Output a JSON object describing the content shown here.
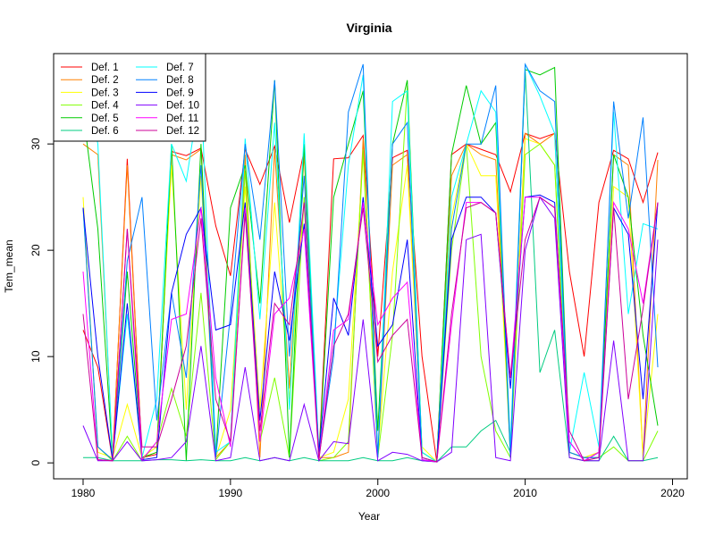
{
  "chart_data": {
    "type": "line",
    "title": "Virginia",
    "xlabel": "Year",
    "ylabel": "Tem_mean",
    "xlim": [
      1978,
      2021
    ],
    "ylim": [
      -1.5,
      38.5
    ],
    "xticks": [
      1980,
      1990,
      2000,
      2010,
      2020
    ],
    "yticks": [
      0,
      10,
      20,
      30
    ],
    "grid": false,
    "legend_position": "top-left",
    "x": [
      1980,
      1981,
      1982,
      1983,
      1984,
      1985,
      1986,
      1987,
      1988,
      1989,
      1990,
      1991,
      1992,
      1993,
      1994,
      1995,
      1996,
      1997,
      1998,
      1999,
      2000,
      2001,
      2002,
      2003,
      2004,
      2005,
      2006,
      2007,
      2008,
      2009,
      2010,
      2011,
      2012,
      2013,
      2014,
      2015,
      2016,
      2017,
      2018,
      2019
    ],
    "series": [
      {
        "name": "Def. 1",
        "color": "#FF0000",
        "values": [
          12.5,
          9.0,
          0.2,
          28.6,
          0.5,
          0.8,
          29.3,
          28.9,
          29.6,
          22.3,
          17.6,
          29.5,
          26.2,
          29.8,
          22.6,
          29.4,
          0.5,
          28.6,
          28.7,
          30.8,
          10.0,
          28.7,
          29.4,
          10.0,
          0.1,
          29.0,
          30.0,
          29.5,
          29.0,
          25.5,
          31.0,
          30.5,
          31.0,
          18.0,
          10.0,
          24.5,
          29.4,
          28.6,
          24.5,
          29.2
        ]
      },
      {
        "name": "Def. 2",
        "color": "#FF8000",
        "values": [
          30.0,
          29.0,
          0.5,
          28.0,
          0.5,
          1.0,
          29.0,
          28.5,
          29.5,
          0.5,
          2.0,
          29.0,
          0.5,
          29.5,
          7.0,
          29.0,
          0.5,
          0.5,
          1.0,
          30.5,
          0.5,
          28.0,
          29.0,
          1.0,
          0.1,
          27.0,
          30.0,
          29.0,
          28.5,
          1.5,
          31.0,
          30.0,
          31.0,
          1.0,
          0.5,
          1.0,
          29.0,
          28.0,
          0.5,
          28.5
        ]
      },
      {
        "name": "Def. 3",
        "color": "#FFFF00",
        "values": [
          25.0,
          1.0,
          0.5,
          5.5,
          0.5,
          1.5,
          28.0,
          5.0,
          27.0,
          0.5,
          5.0,
          26.0,
          5.0,
          24.5,
          6.0,
          25.0,
          0.5,
          1.0,
          6.0,
          29.0,
          1.0,
          18.0,
          28.0,
          1.5,
          0.1,
          23.0,
          30.0,
          27.0,
          27.0,
          1.0,
          30.5,
          30.0,
          28.0,
          1.0,
          0.5,
          1.0,
          26.0,
          25.0,
          0.5,
          14.0
        ]
      },
      {
        "name": "Def. 4",
        "color": "#80FF00",
        "values": [
          24.0,
          1.5,
          0.2,
          2.5,
          0.2,
          2.0,
          7.0,
          2.5,
          16.0,
          0.3,
          2.0,
          27.5,
          2.0,
          8.0,
          0.5,
          25.0,
          0.2,
          0.5,
          2.0,
          29.5,
          0.5,
          12.0,
          35.5,
          0.5,
          0.1,
          20.0,
          30.0,
          10.0,
          3.0,
          0.5,
          29.0,
          30.0,
          28.0,
          0.5,
          0.2,
          0.5,
          1.5,
          0.2,
          0.2,
          3.0
        ]
      },
      {
        "name": "Def. 5",
        "color": "#00CC00",
        "values": [
          33.0,
          22.0,
          0.3,
          18.0,
          0.5,
          1.0,
          30.0,
          0.2,
          30.0,
          0.5,
          24.0,
          28.0,
          15.0,
          36.0,
          0.5,
          30.0,
          0.5,
          25.0,
          30.0,
          35.0,
          3.0,
          30.0,
          36.0,
          1.0,
          0.1,
          29.0,
          35.5,
          30.0,
          32.0,
          0.5,
          37.0,
          36.5,
          37.2,
          1.0,
          0.5,
          0.5,
          29.0,
          25.0,
          12.0,
          3.5
        ]
      },
      {
        "name": "Def. 6",
        "color": "#00CC80",
        "values": [
          0.5,
          0.5,
          0.2,
          0.2,
          0.2,
          0.3,
          0.3,
          0.2,
          0.3,
          0.2,
          0.2,
          0.5,
          0.2,
          0.5,
          0.2,
          0.5,
          0.2,
          0.2,
          0.2,
          0.5,
          0.2,
          0.2,
          0.5,
          0.2,
          0.1,
          1.5,
          1.5,
          3.0,
          4.0,
          1.0,
          37.0,
          8.5,
          12.5,
          0.5,
          0.2,
          0.2,
          2.5,
          0.2,
          0.2,
          0.5
        ]
      },
      {
        "name": "Def. 7",
        "color": "#00FFFF",
        "values": [
          37.0,
          30.0,
          0.5,
          14.0,
          0.5,
          6.0,
          30.0,
          26.5,
          35.5,
          1.0,
          2.0,
          30.5,
          13.5,
          32.0,
          5.0,
          31.0,
          1.0,
          11.0,
          28.0,
          36.5,
          0.5,
          34.0,
          35.0,
          1.0,
          0.1,
          25.0,
          30.0,
          35.0,
          33.0,
          1.5,
          37.5,
          34.5,
          31.0,
          1.0,
          8.5,
          1.5,
          33.0,
          14.0,
          22.5,
          22.0
        ]
      },
      {
        "name": "Def. 8",
        "color": "#0080FF",
        "values": [
          24.0,
          1.5,
          0.3,
          19.0,
          25.0,
          4.0,
          16.0,
          8.0,
          28.0,
          0.5,
          14.0,
          30.0,
          21.0,
          36.0,
          10.0,
          27.0,
          0.5,
          10.0,
          33.0,
          37.5,
          0.5,
          30.0,
          32.0,
          0.5,
          0.1,
          22.0,
          30.0,
          30.0,
          35.5,
          0.5,
          37.5,
          35.0,
          34.0,
          1.0,
          0.5,
          0.5,
          34.0,
          23.0,
          32.5,
          9.0
        ]
      },
      {
        "name": "Def. 9",
        "color": "#0000FF",
        "values": [
          24.0,
          10.0,
          0.3,
          15.0,
          0.3,
          0.5,
          16.0,
          21.5,
          24.0,
          12.5,
          13.0,
          24.5,
          4.0,
          18.0,
          11.5,
          22.5,
          1.0,
          15.5,
          12.0,
          25.0,
          11.0,
          13.0,
          21.0,
          0.3,
          0.1,
          21.0,
          25.0,
          25.0,
          23.5,
          7.0,
          25.0,
          25.2,
          24.5,
          2.0,
          0.2,
          1.0,
          24.0,
          21.5,
          6.0,
          24.5
        ]
      },
      {
        "name": "Def. 10",
        "color": "#8000FF",
        "values": [
          3.5,
          0.2,
          0.2,
          2.0,
          0.2,
          0.3,
          0.5,
          2.0,
          11.0,
          0.2,
          0.5,
          9.0,
          0.2,
          0.5,
          0.2,
          5.5,
          0.2,
          2.0,
          1.8,
          13.5,
          0.2,
          1.0,
          0.8,
          0.2,
          0.1,
          1.0,
          21.0,
          21.5,
          0.5,
          0.2,
          20.0,
          25.0,
          23.0,
          0.5,
          0.2,
          0.2,
          11.5,
          0.2,
          0.2,
          21.0
        ]
      },
      {
        "name": "Def. 11",
        "color": "#FF00FF",
        "values": [
          18.0,
          0.3,
          0.2,
          22.0,
          0.3,
          2.0,
          13.5,
          14.0,
          24.0,
          8.0,
          1.5,
          24.0,
          2.0,
          14.0,
          15.5,
          22.0,
          0.3,
          12.5,
          13.5,
          24.5,
          13.0,
          15.5,
          17.0,
          0.3,
          0.1,
          13.0,
          24.5,
          24.5,
          23.5,
          8.0,
          25.0,
          25.0,
          24.0,
          2.0,
          0.2,
          1.0,
          24.5,
          22.0,
          15.0,
          24.5
        ]
      },
      {
        "name": "Def. 12",
        "color": "#CC0099",
        "values": [
          14.0,
          0.3,
          0.2,
          22.0,
          1.5,
          1.5,
          6.0,
          11.0,
          23.0,
          6.0,
          2.0,
          23.5,
          3.0,
          15.0,
          13.0,
          24.5,
          0.3,
          11.0,
          14.0,
          24.0,
          9.5,
          12.0,
          13.5,
          0.5,
          0.1,
          14.0,
          24.0,
          24.5,
          23.5,
          8.0,
          21.0,
          25.0,
          24.0,
          3.0,
          0.2,
          0.5,
          24.0,
          6.0,
          14.5,
          24.5
        ]
      }
    ]
  }
}
